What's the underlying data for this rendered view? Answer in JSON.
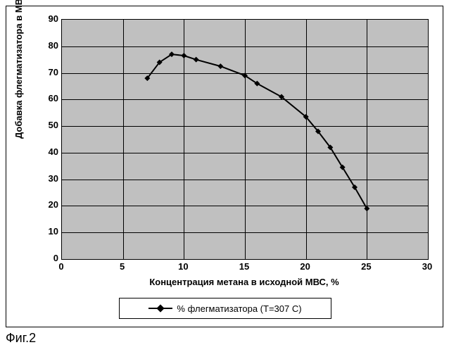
{
  "chart": {
    "type": "line",
    "background_color": "#ffffff",
    "plot_background": "#c0c0c0",
    "grid_color": "#000000",
    "series_color": "#000000",
    "line_width": 2,
    "marker_style": "diamond",
    "marker_size": 8,
    "x": [
      7,
      8,
      9,
      10,
      11,
      13,
      15,
      16,
      18,
      20,
      21,
      22,
      23,
      24,
      25
    ],
    "y": [
      68,
      74,
      77,
      76.5,
      75,
      72.5,
      69,
      66,
      61,
      53.5,
      48,
      42,
      34.5,
      27,
      19
    ],
    "xlim": [
      0,
      30
    ],
    "ylim": [
      0,
      90
    ],
    "xtick_step": 5,
    "ytick_step": 10,
    "xticks": [
      "0",
      "5",
      "10",
      "15",
      "20",
      "25",
      "30"
    ],
    "yticks": [
      "0",
      "10",
      "20",
      "30",
      "40",
      "50",
      "60",
      "70",
      "80",
      "90"
    ],
    "xlabel": "Концентрация метана в исходной МВС, %",
    "ylabel": "Добавка флегматизатора в МВС, %",
    "legend_label": "% флегматизатора (Т=307 С)",
    "label_fontsize": 13,
    "tick_fontsize": 13,
    "font_weight": "bold"
  },
  "caption": "Фиг.2"
}
